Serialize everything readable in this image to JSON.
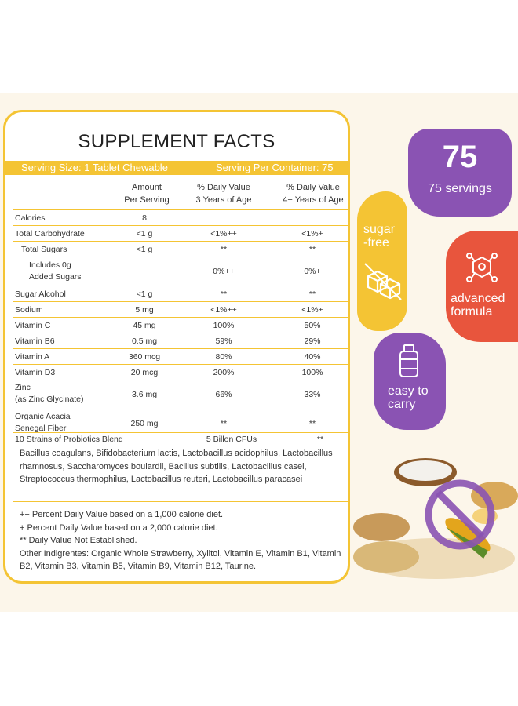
{
  "panel": {
    "title": "SUPPLEMENT FACTS",
    "serving_size": "Serving Size: 1 Tablet Chewable",
    "servings_per_container": "Serving Per Container: 75",
    "col_amount_1": "Amount",
    "col_amount_2": "Per Serving",
    "col_dv3_1": "% Daily Value",
    "col_dv3_2": "3 Years of Age",
    "col_dv4_1": "% Daily Value",
    "col_dv4_2": "4+ Years of Age"
  },
  "rows": [
    {
      "name": "Calories",
      "amount": "8",
      "dv3": "",
      "dv4": ""
    },
    {
      "name": "Total Carbohydrate",
      "amount": "<1 g",
      "dv3": "<1%++",
      "dv4": "<1%+"
    },
    {
      "name": "Total Sugars",
      "amount": "<1 g",
      "dv3": "**",
      "dv4": "**"
    },
    {
      "name1": "Includes 0g",
      "name2": "Added Sugars",
      "amount": "",
      "dv3": "0%++",
      "dv4": "0%+"
    },
    {
      "name": "Sugar Alcohol",
      "amount": "<1 g",
      "dv3": "**",
      "dv4": "**"
    },
    {
      "name": "Sodium",
      "amount": "5 mg",
      "dv3": "<1%++",
      "dv4": "<1%+"
    },
    {
      "name": "Vitamin C",
      "amount": "45 mg",
      "dv3": "100%",
      "dv4": "50%"
    },
    {
      "name": "Vitamin B6",
      "amount": "0.5 mg",
      "dv3": "59%",
      "dv4": "29%"
    },
    {
      "name": "Vitamin A",
      "amount": "360 mcg",
      "dv3": "80%",
      "dv4": "40%"
    },
    {
      "name": "Vitamin D3",
      "amount": "20 mcg",
      "dv3": "200%",
      "dv4": "100%"
    },
    {
      "name1": "Zinc",
      "name2": "(as Zinc Glycinate)",
      "amount": "3.6 mg",
      "dv3": "66%",
      "dv4": "33%"
    },
    {
      "name1": "Organic Acacia",
      "name2": "Senegal Fiber",
      "amount": "250 mg",
      "dv3": "**",
      "dv4": "**"
    }
  ],
  "probiotics": {
    "name": "10 Strains of Probiotics Blend",
    "amount": "5 Billon CFUs",
    "dv4": "**",
    "strains": "Bacillus coagulans, Bifidobacterium lactis, Lactobacillus acidophilus, Lactobacillus rhamnosus, Saccharomyces boulardii, Bacillus subtilis, Lactobacillus casei, Streptococcus thermophilus, Lactobacillus reuteri, Lactobacillus paracasei"
  },
  "footnotes": {
    "f1": "++ Percent Daily Value based on a 1,000 calorie diet.",
    "f2": "+ Percent Daily Value based on a 2,000 calorie diet.",
    "f3": "** Daily Value Not Established.",
    "f4": "Other Indigrentes: Organic Whole Strawberry, Xylitol, Vitamin E, Vitamin B1, Vitamin B2, Vitamin B3, Vitamin B5, Vitamin B9, Vitamin B12, Taurine."
  },
  "badges": {
    "servings_number": "75",
    "servings_label": "75 servings",
    "sugar_free_1": "sugar",
    "sugar_free_2": "-free",
    "advanced_1": "advanced",
    "advanced_2": "formula",
    "easy_1": "easy to",
    "easy_2": "carry"
  },
  "colors": {
    "accent_yellow": "#f4c434",
    "purple": "#8a53b3",
    "orange_red": "#e8553d",
    "background": "#fcf6ea"
  }
}
